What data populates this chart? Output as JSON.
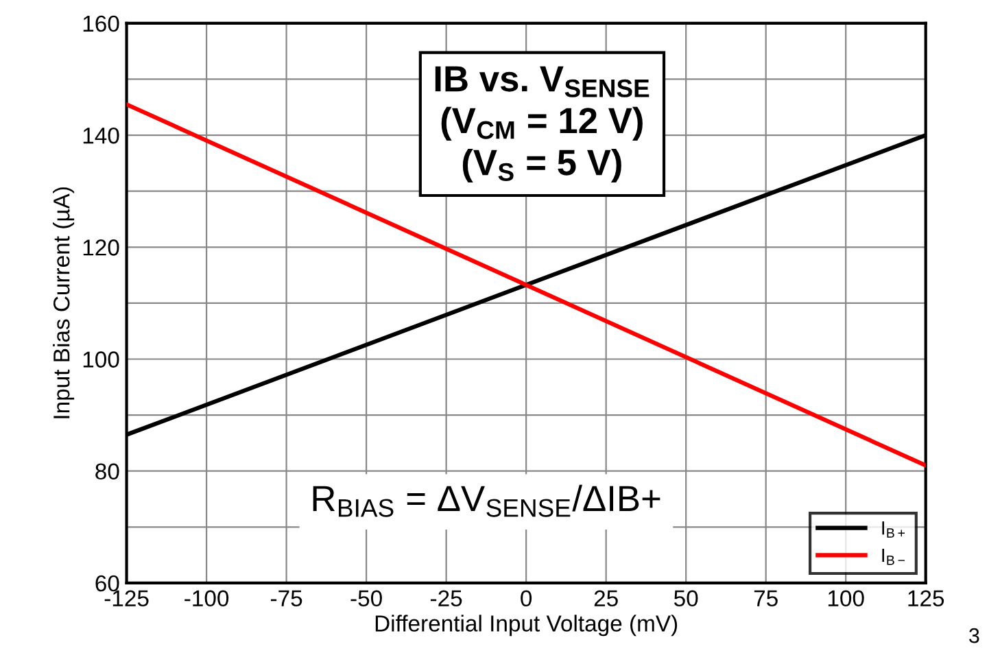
{
  "chart_data": {
    "type": "line",
    "xlabel": "Differential Input Voltage (mV)",
    "ylabel": "Input Bias Current (µA)",
    "x": [
      -125,
      125
    ],
    "series": [
      {
        "name": "I$_{B+}$",
        "color": "#000000",
        "values": [
          86.5,
          140
        ]
      },
      {
        "name": "I$_{B−}$",
        "color": "#ff0000",
        "values": [
          145.5,
          81
        ]
      }
    ],
    "xlim": [
      -125,
      125
    ],
    "xticks": [
      -125,
      -100,
      -75,
      -50,
      -25,
      0,
      25,
      50,
      75,
      100,
      125
    ],
    "ylim": [
      60,
      160
    ],
    "yticks": [
      60,
      {
        "value": 70,
        "label": null
      },
      80,
      {
        "value": 90,
        "label": null
      },
      100,
      {
        "value": 110,
        "label": null
      },
      120,
      {
        "value": 130,
        "label": null
      },
      140,
      {
        "value": 150,
        "label": null
      },
      160
    ],
    "grid": true,
    "legend": "bottom right",
    "marker": "none",
    "line_style": "solid",
    "annotations": [
      "IB vs. V$_{SENSE}$\n(V$_{CM}$ = 12 V)\n(V$_{S}$ = 5 V)",
      "R$_{BIAS}$ = ΔV$_{SENSE}$/ΔIB+",
      "3"
    ]
  }
}
